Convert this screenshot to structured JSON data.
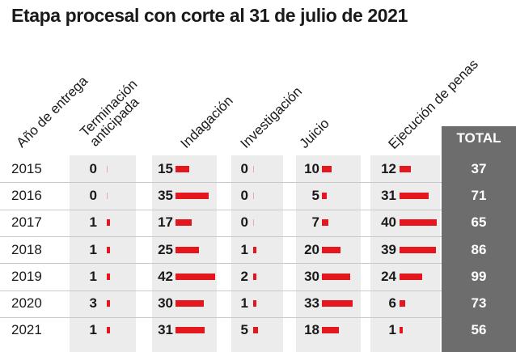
{
  "chart_data": {
    "type": "table",
    "title": "Etapa procesal con corte al 31 de julio de 2021",
    "row_header": "Año de entrega",
    "columns": [
      {
        "key": "terminacion",
        "label_lines": [
          "Terminación",
          "anticipada"
        ]
      },
      {
        "key": "indagacion",
        "label_lines": [
          "Indagación"
        ]
      },
      {
        "key": "investigacion",
        "label_lines": [
          "Investigación"
        ]
      },
      {
        "key": "juicio",
        "label_lines": [
          "Juicio"
        ]
      },
      {
        "key": "ejecucion",
        "label_lines": [
          "Ejecución de penas"
        ]
      }
    ],
    "total_label": "TOTAL",
    "rows": [
      {
        "year": "2015",
        "values": [
          0,
          15,
          0,
          10,
          12
        ],
        "total": 37
      },
      {
        "year": "2016",
        "values": [
          0,
          35,
          0,
          5,
          31
        ],
        "total": 71
      },
      {
        "year": "2017",
        "values": [
          1,
          17,
          0,
          7,
          40
        ],
        "total": 65
      },
      {
        "year": "2018",
        "values": [
          1,
          25,
          1,
          20,
          39
        ],
        "total": 86
      },
      {
        "year": "2019",
        "values": [
          1,
          42,
          2,
          30,
          24
        ],
        "total": 99
      },
      {
        "year": "2020",
        "values": [
          3,
          30,
          1,
          33,
          6
        ],
        "total": 73
      },
      {
        "year": "2021",
        "values": [
          1,
          31,
          5,
          18,
          1
        ],
        "total": 56
      }
    ],
    "bar_color": "#e3171d",
    "total_bg_color": "#6d6d6d"
  }
}
